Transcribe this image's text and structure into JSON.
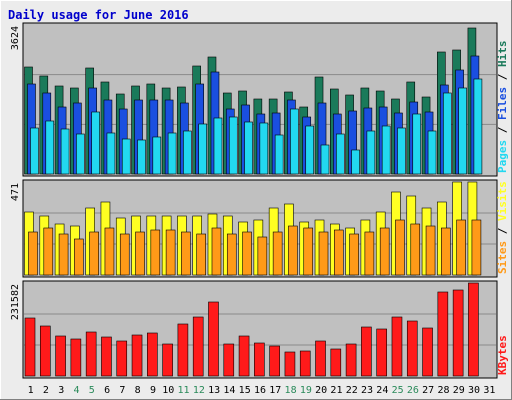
{
  "title": "Daily usage for June 2016",
  "colors": {
    "hits": "#1a7a5a",
    "files": "#1a4fe0",
    "pages": "#22d8f0",
    "visits": "#ffff22",
    "sites": "#ff9a18",
    "kbytes": "#ff1a1a",
    "panel_bg": "#c0c0c0",
    "weekend_label": "#2a8a5a",
    "weekday_label": "#000000",
    "title": "#0000cc"
  },
  "chart_data": [
    {
      "type": "bar",
      "panel": "top",
      "ymax_label": "3624",
      "ylim": [
        0,
        3624
      ],
      "legend": [
        "Pages",
        "Files",
        "Hits"
      ],
      "legend_separator": " / ",
      "x": [
        "1",
        "2",
        "3",
        "4",
        "5",
        "6",
        "7",
        "8",
        "9",
        "10",
        "11",
        "12",
        "13",
        "14",
        "15",
        "16",
        "17",
        "18",
        "19",
        "20",
        "21",
        "22",
        "23",
        "24",
        "25",
        "26",
        "27",
        "28",
        "29",
        "30",
        "31"
      ],
      "weekend_days": [
        "4",
        "5",
        "11",
        "12",
        "18",
        "19",
        "25",
        "26"
      ],
      "series": [
        {
          "name": "Hits",
          "values": [
            2600,
            2380,
            2140,
            2100,
            2580,
            2230,
            1940,
            2140,
            2180,
            2100,
            2120,
            2630,
            2840,
            1960,
            2030,
            1820,
            1820,
            2000,
            1620,
            2350,
            2060,
            1930,
            2080,
            2020,
            1830,
            2230,
            1870,
            2970,
            3020,
            3560,
            null
          ]
        },
        {
          "name": "Files",
          "values": [
            2190,
            1960,
            1640,
            1720,
            2100,
            1800,
            1590,
            1810,
            1810,
            1800,
            1730,
            2190,
            2490,
            1580,
            1680,
            1460,
            1480,
            1790,
            1380,
            1720,
            1450,
            1530,
            1610,
            1640,
            1480,
            1740,
            1510,
            2170,
            2540,
            2880,
            null
          ]
        },
        {
          "name": "Pages",
          "values": [
            1130,
            1300,
            1100,
            980,
            1500,
            1000,
            840,
            830,
            900,
            1000,
            1050,
            1210,
            1350,
            1390,
            1260,
            1240,
            960,
            1570,
            1170,
            710,
            970,
            580,
            1050,
            1170,
            1130,
            1470,
            1050,
            1960,
            2100,
            2300,
            null
          ]
        }
      ]
    },
    {
      "type": "bar",
      "panel": "middle",
      "ymax_label": "471",
      "ylim": [
        0,
        471
      ],
      "legend": [
        "Sites",
        "Visits"
      ],
      "legend_separator": " / ",
      "x": [
        "1",
        "2",
        "3",
        "4",
        "5",
        "6",
        "7",
        "8",
        "9",
        "10",
        "11",
        "12",
        "13",
        "14",
        "15",
        "16",
        "17",
        "18",
        "19",
        "20",
        "21",
        "22",
        "23",
        "24",
        "25",
        "26",
        "27",
        "28",
        "29",
        "30",
        "31"
      ],
      "series": [
        {
          "name": "Visits",
          "values": [
            320,
            300,
            260,
            250,
            340,
            370,
            290,
            300,
            300,
            300,
            300,
            300,
            310,
            300,
            270,
            280,
            340,
            360,
            270,
            280,
            260,
            240,
            280,
            320,
            420,
            400,
            340,
            370,
            480,
            470,
            null
          ]
        },
        {
          "name": "Sites",
          "values": [
            220,
            240,
            210,
            180,
            220,
            240,
            210,
            220,
            230,
            230,
            220,
            210,
            240,
            210,
            220,
            190,
            220,
            250,
            240,
            220,
            230,
            210,
            220,
            240,
            280,
            260,
            250,
            240,
            280,
            280,
            null
          ]
        }
      ]
    },
    {
      "type": "bar",
      "panel": "bottom",
      "ymax_label": "231582",
      "ylim": [
        0,
        231582
      ],
      "legend": [
        "KBytes"
      ],
      "x": [
        "1",
        "2",
        "3",
        "4",
        "5",
        "6",
        "7",
        "8",
        "9",
        "10",
        "11",
        "12",
        "13",
        "14",
        "15",
        "16",
        "17",
        "18",
        "19",
        "20",
        "21",
        "22",
        "23",
        "24",
        "25",
        "26",
        "27",
        "28",
        "29",
        "30",
        "31"
      ],
      "series": [
        {
          "name": "KBytes",
          "values": [
            145000,
            124000,
            100000,
            91000,
            110000,
            96000,
            86000,
            103000,
            107000,
            79000,
            130000,
            148000,
            184000,
            79000,
            99000,
            83000,
            75000,
            59000,
            63000,
            86000,
            66000,
            80000,
            122000,
            116000,
            148000,
            138000,
            120000,
            209000,
            215000,
            240000,
            null
          ]
        }
      ]
    }
  ]
}
